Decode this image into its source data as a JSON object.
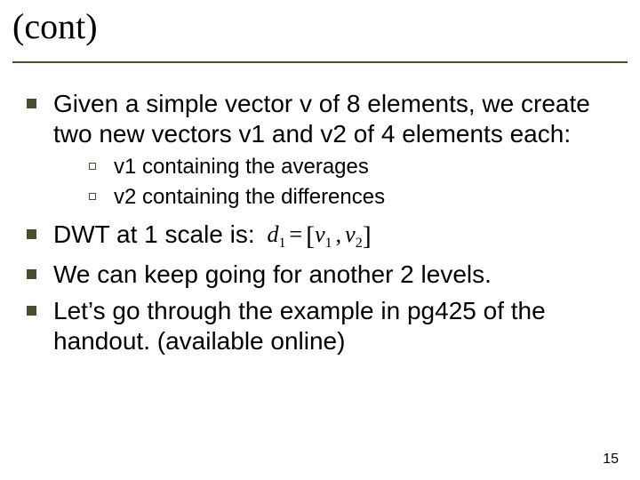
{
  "title": "(cont)",
  "bullets": {
    "b1": "Given a simple vector v of 8 elements, we create two new vectors v1 and v2 of 4 elements each:",
    "sub1": "v1 containing the averages",
    "sub2": "v2 containing the differences",
    "b2_prefix": "DWT at 1 scale is: ",
    "b3": "We can keep going for another 2 levels.",
    "b4": "Let’s go through the example in pg425 of the handout. (available online)"
  },
  "formula": {
    "d": "d",
    "d_sub": "1",
    "eq": "=",
    "lb": "[",
    "v1": "v",
    "v1_sub": "1",
    "comma": ",",
    "v2": "v",
    "v2_sub": "2",
    "rb": "]"
  },
  "page_number": "15",
  "colors": {
    "accent": "#4d4d2e",
    "text": "#000000",
    "background": "#ffffff"
  },
  "fontsizes": {
    "title": 40,
    "lvl1": 28,
    "lvl2": 24,
    "pagenum": 16
  }
}
